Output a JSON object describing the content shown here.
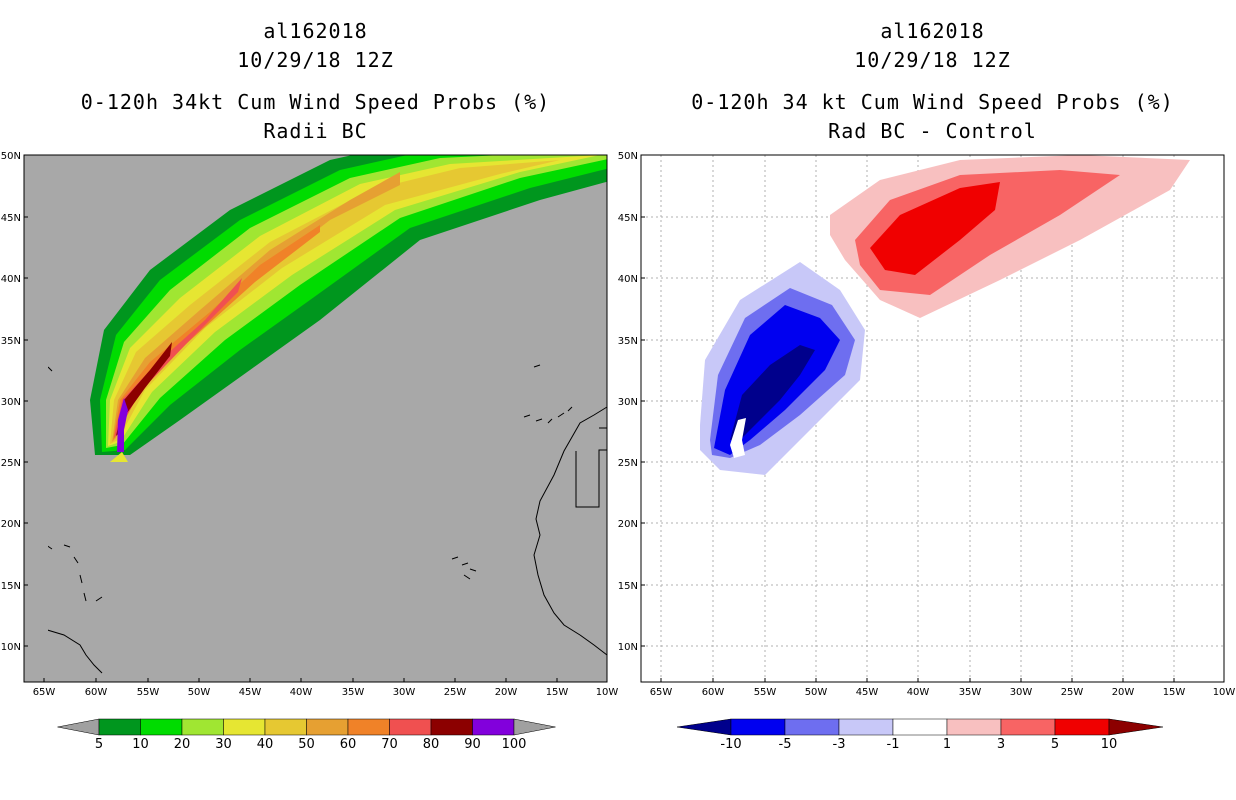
{
  "left": {
    "storm_id": "al162018",
    "datetime": "10/29/18 12Z",
    "product": "0-120h 34kt Cum Wind Speed Probs (%)",
    "subtitle": "Radii BC",
    "colorbar": {
      "labels": [
        "5",
        "10",
        "20",
        "30",
        "40",
        "50",
        "60",
        "70",
        "80",
        "90",
        "100"
      ],
      "colors": [
        "#a0a0a0",
        "#00961e",
        "#00dc00",
        "#a0e632",
        "#e6e632",
        "#e6c832",
        "#e6a032",
        "#f08228",
        "#f05050",
        "#8c0000",
        "#8200dc",
        "#a0a0a0"
      ]
    }
  },
  "right": {
    "storm_id": "al162018",
    "datetime": "10/29/18 12Z",
    "product": "0-120h 34 kt Cum Wind Speed Probs (%)",
    "subtitle": "Rad BC - Control",
    "colorbar": {
      "labels": [
        "-10",
        "-5",
        "-3",
        "-1",
        "1",
        "3",
        "5",
        "10"
      ],
      "colors": [
        "#00008c",
        "#0000f0",
        "#6e6ef0",
        "#c8c8f8",
        "#ffffff",
        "#f8c0c0",
        "#f86464",
        "#f00000",
        "#8c0000"
      ]
    }
  },
  "axes": {
    "lat_labels": [
      "50N",
      "45N",
      "40N",
      "35N",
      "30N",
      "25N",
      "20N",
      "15N",
      "10N"
    ],
    "lon_labels": [
      "65W",
      "60W",
      "55W",
      "50W",
      "45W",
      "40W",
      "35W",
      "30W",
      "25W",
      "20W",
      "15W",
      "10W"
    ],
    "background": "#a8a8a8"
  }
}
